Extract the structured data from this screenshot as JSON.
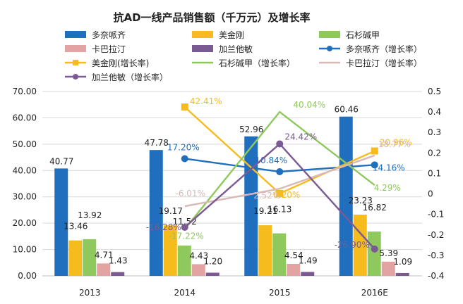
{
  "chart_data": {
    "type": "bar",
    "title": "抗AD一线产品销售额（千万元）及增长率",
    "categories": [
      "2013",
      "2014",
      "2015",
      "2016E"
    ],
    "ylim": [
      0,
      70
    ],
    "y_ticks": [
      "0.00",
      "10.00",
      "20.00",
      "30.00",
      "40.00",
      "50.00",
      "60.00",
      "70.00"
    ],
    "y2lim": [
      -0.4,
      0.5
    ],
    "y2_ticks": [
      "-0.4",
      "-0.3",
      "-0.2",
      "-0.1",
      "0",
      "0.1",
      "0.2",
      "0.3",
      "0.4",
      "0.5"
    ],
    "grid": true,
    "legend_position": "top",
    "series": [
      {
        "name": "多奈哌齐",
        "kind": "bar",
        "axis": "left",
        "color": "#1f6fbe",
        "values": [
          40.77,
          47.78,
          52.96,
          60.46
        ],
        "labels": [
          "40.77",
          "47.78",
          "52.96",
          "60.46"
        ]
      },
      {
        "name": "美金刚",
        "kind": "bar",
        "axis": "left",
        "color": "#f6bb1c",
        "values": [
          13.46,
          19.17,
          19.21,
          23.23
        ],
        "labels": [
          "13.46",
          "19.17",
          "19.21",
          "23.23"
        ]
      },
      {
        "name": "石杉碱甲",
        "kind": "bar",
        "axis": "left",
        "color": "#8fc95d",
        "values": [
          13.92,
          11.52,
          16.13,
          16.82
        ],
        "labels": [
          "13.92",
          "11.52",
          "16.13",
          "16.82"
        ]
      },
      {
        "name": "卡巴拉汀",
        "kind": "bar",
        "axis": "left",
        "color": "#e4a3a3",
        "values": [
          4.71,
          4.43,
          4.54,
          5.39
        ],
        "labels": [
          "4.71",
          "4.43",
          "4.54",
          "5.39"
        ]
      },
      {
        "name": "加兰他敏",
        "kind": "bar",
        "axis": "left",
        "color": "#7b5a93",
        "values": [
          1.43,
          1.2,
          1.49,
          1.09
        ],
        "labels": [
          "1.43",
          "1.20",
          "1.49",
          "1.09"
        ]
      },
      {
        "name": "多奈哌齐（增长率）",
        "kind": "line",
        "axis": "right",
        "color": "#1f6fbe",
        "values": [
          null,
          0.172,
          0.1084,
          0.1416
        ],
        "labels": [
          null,
          "17.20%",
          "10.84%",
          "14.16%"
        ]
      },
      {
        "name": "美金刚(增长率)",
        "kind": "line",
        "axis": "right",
        "color": "#f6bb1c",
        "values": [
          null,
          0.4241,
          0.002,
          0.2096
        ],
        "labels": [
          null,
          "42.41%",
          "0.20%",
          "20.96%"
        ]
      },
      {
        "name": "石杉碱甲（增长率）",
        "kind": "line",
        "axis": "right",
        "color": "#8fc95d",
        "values": [
          null,
          -0.1722,
          0.4004,
          0.0429
        ],
        "labels": [
          null,
          "-17.22%",
          "40.04%",
          "4.29%"
        ]
      },
      {
        "name": "卡巴拉汀（增长率）",
        "kind": "line",
        "axis": "right",
        "color": "#d9b8b8",
        "values": [
          null,
          -0.0601,
          0.0252,
          0.1877
        ],
        "labels": [
          null,
          "-6.01%",
          "2.52%",
          "18.77%"
        ]
      },
      {
        "name": "加兰他敏（增长率）",
        "kind": "line",
        "axis": "right",
        "color": "#7b5a93",
        "values": [
          null,
          -0.1628,
          0.2442,
          -0.269
        ],
        "labels": [
          null,
          "-16.28%",
          "24.42%",
          "-26.90%"
        ]
      }
    ]
  }
}
